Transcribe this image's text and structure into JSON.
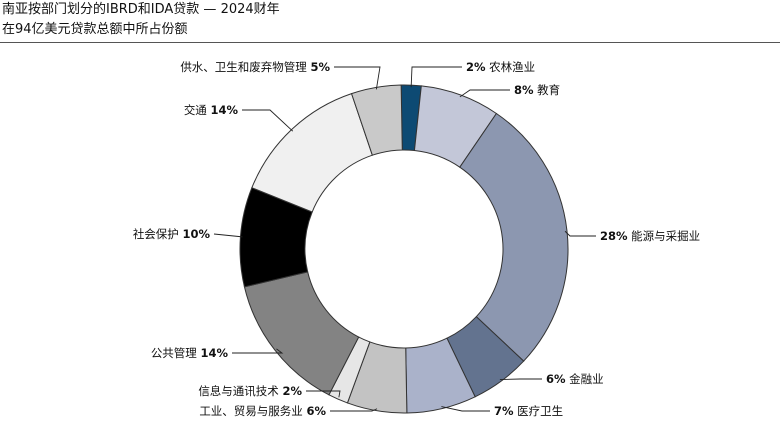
{
  "title": "南亚按部门划分的IBRD和IDA贷款 — 2024财年",
  "subtitle": "在94亿美元贷款总额中所占份额",
  "chart_data": {
    "type": "pie",
    "variant": "donut",
    "title": "南亚按部门划分的IBRD和IDA贷款 — 2024财年",
    "subtitle": "在94亿美元贷款总额中所占份额",
    "unit": "%",
    "slices": [
      {
        "name": "农林渔业",
        "value": 2,
        "label": "2%",
        "color": "#0d4a73"
      },
      {
        "name": "教育",
        "value": 8,
        "label": "8%",
        "color": "#c3c7d8"
      },
      {
        "name": "能源与采掘业",
        "value": 28,
        "label": "28%",
        "color": "#8c97b0"
      },
      {
        "name": "金融业",
        "value": 6,
        "label": "6%",
        "color": "#63738f"
      },
      {
        "name": "医疗卫生",
        "value": 7,
        "label": "7%",
        "color": "#aab2ca"
      },
      {
        "name": "工业、贸易与服务业",
        "value": 6,
        "label": "6%",
        "color": "#c3c3c3"
      },
      {
        "name": "信息与通讯技术",
        "value": 2,
        "label": "2%",
        "color": "#e6e6e6"
      },
      {
        "name": "公共管理",
        "value": 14,
        "label": "14%",
        "color": "#838383"
      },
      {
        "name": "社会保护",
        "value": 10,
        "label": "10%",
        "color": "#000000"
      },
      {
        "name": "交通",
        "value": 14,
        "label": "14%",
        "color": "#f0f0f0"
      },
      {
        "name": "供水、卫生和废弃物管理",
        "value": 5,
        "label": "5%",
        "color": "#c9c9c9"
      }
    ]
  }
}
